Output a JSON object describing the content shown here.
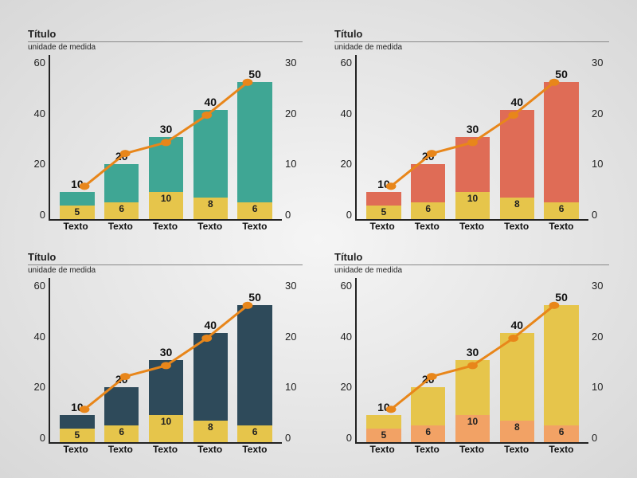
{
  "shared": {
    "title": "Título",
    "subtitle": "unidade de medida",
    "categories": [
      "Texto",
      "Texto",
      "Texto",
      "Texto",
      "Texto"
    ],
    "bar_values": [
      10,
      20,
      30,
      40,
      50
    ],
    "lower_values": [
      5,
      6,
      10,
      8,
      6
    ],
    "line_values": [
      6,
      12,
      14,
      19,
      25
    ],
    "left_axis": {
      "min": 0,
      "max": 60,
      "ticks": [
        60,
        40,
        20,
        0
      ]
    },
    "right_axis": {
      "min": 0,
      "max": 30,
      "ticks": [
        30,
        20,
        10,
        0
      ]
    },
    "line_color": "#e8861a",
    "line_width": 3,
    "marker_size": 5,
    "axis_color": "#222222",
    "title_fontsize": 13,
    "subtitle_fontsize": 10,
    "tick_fontsize": 13,
    "bar_label_fontsize": 14,
    "x_label_fontsize": 12
  },
  "panels": [
    {
      "bar_color": "#3fa694",
      "lower_color": "#e6c54b"
    },
    {
      "bar_color": "#df6c56",
      "lower_color": "#e6c54b"
    },
    {
      "bar_color": "#2e4a5a",
      "lower_color": "#e6c54b"
    },
    {
      "bar_color": "#e6c54b",
      "lower_color": "#f2a265"
    }
  ]
}
